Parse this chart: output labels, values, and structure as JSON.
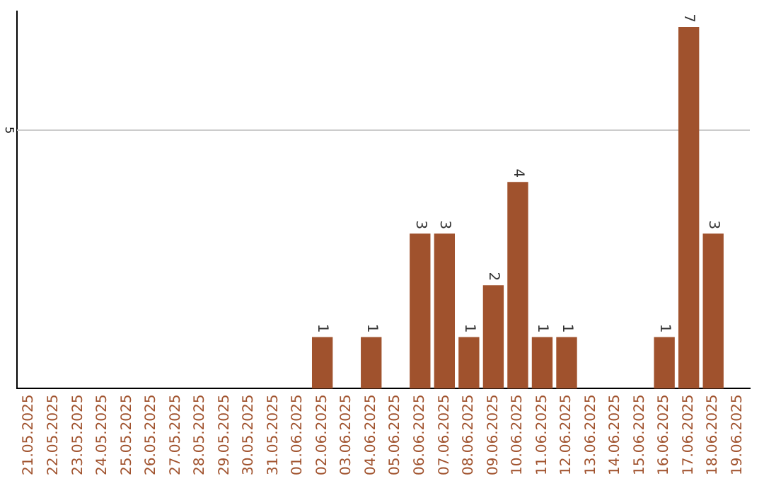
{
  "chart_data": {
    "type": "bar",
    "categories": [
      "21.05.2025",
      "22.05.2025",
      "23.05.2025",
      "24.05.2025",
      "25.05.2025",
      "26.05.2025",
      "27.05.2025",
      "28.05.2025",
      "29.05.2025",
      "30.05.2025",
      "31.05.2025",
      "01.06.2025",
      "02.06.2025",
      "03.06.2025",
      "04.06.2025",
      "05.06.2025",
      "06.06.2025",
      "07.06.2025",
      "08.06.2025",
      "09.06.2025",
      "10.06.2025",
      "11.06.2025",
      "12.06.2025",
      "13.06.2025",
      "14.06.2025",
      "15.06.2025",
      "16.06.2025",
      "17.06.2025",
      "18.06.2025",
      "19.06.2025"
    ],
    "values": [
      null,
      null,
      null,
      null,
      null,
      null,
      null,
      null,
      null,
      null,
      null,
      null,
      1,
      null,
      1,
      null,
      3,
      3,
      1,
      2,
      4,
      1,
      1,
      null,
      null,
      null,
      1,
      7,
      3,
      null
    ],
    "data_labels": true,
    "color": "#a0522d",
    "ylim": [
      0,
      7.3
    ],
    "yticks": [
      5
    ],
    "grid": "y",
    "legend": false
  }
}
